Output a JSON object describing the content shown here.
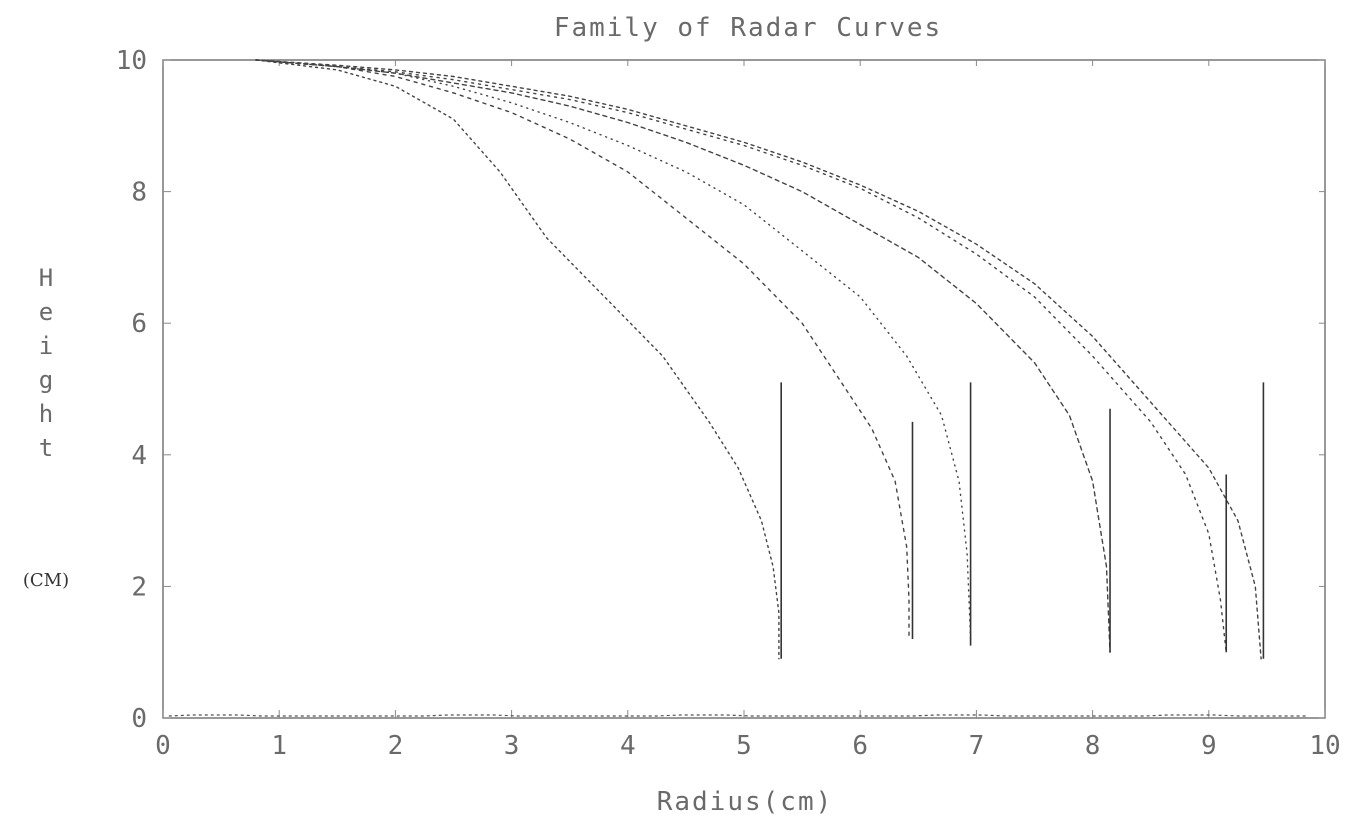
{
  "chart_data": {
    "type": "line",
    "title": "Family of Radar Curves",
    "xlabel": "Radius(cm)",
    "ylabel": "Height",
    "ylabel_unit": "(CM)",
    "xlim": [
      0,
      10
    ],
    "ylim": [
      0,
      10
    ],
    "xticks": [
      "0",
      "1",
      "2",
      "3",
      "4",
      "5",
      "6",
      "7",
      "8",
      "9",
      "10"
    ],
    "yticks": [
      "0",
      "2",
      "4",
      "6",
      "8",
      "10"
    ],
    "grid": false,
    "series": [
      {
        "x": [
          0.8,
          1.5,
          2.0,
          2.5,
          2.9,
          3.3,
          3.8,
          4.3,
          4.7,
          4.95,
          5.15,
          5.25,
          5.3,
          5.3,
          5.3
        ],
        "y": [
          10.0,
          9.85,
          9.6,
          9.1,
          8.3,
          7.3,
          6.4,
          5.5,
          4.5,
          3.8,
          3.0,
          2.3,
          1.6,
          1.1,
          0.9
        ]
      },
      {
        "x": [
          0.8,
          1.5,
          2.0,
          2.5,
          3.0,
          3.5,
          4.0,
          4.5,
          5.0,
          5.5,
          5.8,
          6.1,
          6.3,
          6.4,
          6.42,
          6.42
        ],
        "y": [
          10.0,
          9.9,
          9.75,
          9.5,
          9.2,
          8.8,
          8.3,
          7.6,
          6.9,
          6.0,
          5.2,
          4.4,
          3.6,
          2.6,
          1.8,
          1.2
        ]
      },
      {
        "x": [
          0.8,
          1.5,
          2.0,
          2.5,
          3.0,
          3.5,
          4.0,
          4.5,
          5.0,
          5.5,
          6.0,
          6.4,
          6.7,
          6.85,
          6.92,
          6.95
        ],
        "y": [
          10.0,
          9.9,
          9.8,
          9.6,
          9.35,
          9.05,
          8.7,
          8.3,
          7.8,
          7.1,
          6.4,
          5.5,
          4.6,
          3.6,
          2.5,
          1.2
        ]
      },
      {
        "x": [
          0.8,
          1.5,
          2.0,
          2.5,
          3.0,
          3.5,
          4.0,
          4.5,
          5.0,
          5.5,
          6.0,
          6.5,
          7.0,
          7.5,
          7.8,
          8.0,
          8.12,
          8.15
        ],
        "y": [
          10.0,
          9.9,
          9.8,
          9.65,
          9.5,
          9.3,
          9.05,
          8.75,
          8.4,
          8.0,
          7.5,
          7.0,
          6.3,
          5.4,
          4.6,
          3.6,
          2.3,
          1.0
        ]
      },
      {
        "x": [
          0.8,
          1.5,
          2.0,
          2.5,
          3.0,
          3.5,
          4.0,
          4.5,
          5.0,
          5.5,
          6.0,
          6.5,
          7.0,
          7.5,
          8.0,
          8.5,
          8.8,
          9.0,
          9.1,
          9.15
        ],
        "y": [
          10.0,
          9.9,
          9.82,
          9.7,
          9.55,
          9.4,
          9.2,
          8.95,
          8.7,
          8.4,
          8.05,
          7.6,
          7.05,
          6.4,
          5.5,
          4.5,
          3.7,
          2.8,
          1.8,
          1.0
        ]
      },
      {
        "x": [
          0.8,
          1.5,
          2.0,
          2.5,
          3.0,
          3.5,
          4.0,
          4.5,
          5.0,
          5.5,
          6.0,
          6.5,
          7.0,
          7.5,
          8.0,
          8.5,
          9.0,
          9.25,
          9.4,
          9.45
        ],
        "y": [
          10.0,
          9.92,
          9.85,
          9.75,
          9.6,
          9.45,
          9.25,
          9.0,
          8.75,
          8.45,
          8.1,
          7.7,
          7.2,
          6.6,
          5.8,
          4.8,
          3.8,
          3.0,
          2.0,
          0.9
        ]
      }
    ],
    "vertical_markers": [
      {
        "x": 5.32,
        "y_top": 5.1,
        "y_bottom": 0.9
      },
      {
        "x": 6.45,
        "y_top": 4.5,
        "y_bottom": 1.2
      },
      {
        "x": 6.95,
        "y_top": 5.1,
        "y_bottom": 1.1
      },
      {
        "x": 8.15,
        "y_top": 4.7,
        "y_bottom": 1.0
      },
      {
        "x": 9.15,
        "y_top": 3.7,
        "y_bottom": 1.0
      },
      {
        "x": 9.47,
        "y_top": 5.1,
        "y_bottom": 0.9
      }
    ]
  }
}
